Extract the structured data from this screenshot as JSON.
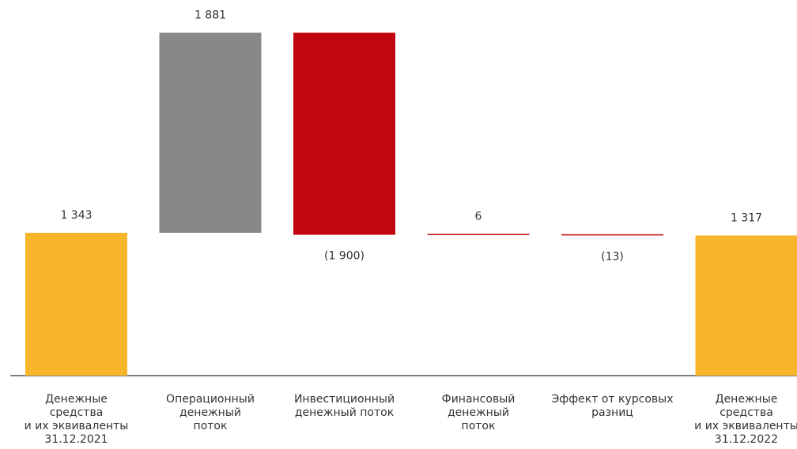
{
  "chart_data": {
    "type": "bar",
    "subtype": "waterfall",
    "categories": [
      [
        "Денежные",
        "средства",
        "и их эквиваленты",
        "31.12.2021"
      ],
      [
        "Операционный",
        "денежный",
        "поток"
      ],
      [
        "Инвестиционный",
        "денежный поток"
      ],
      [
        "Финансовый",
        "денежный",
        "поток"
      ],
      [
        "Эффект от курсовых",
        "разниц"
      ],
      [
        "Денежные",
        "средства",
        "и их эквиваленты",
        "31.12.2022"
      ]
    ],
    "values": [
      1343,
      1881,
      -1900,
      6,
      -13,
      1317
    ],
    "value_labels": [
      "1 343",
      "1 881",
      "(1 900)",
      "6",
      "(13)",
      "1 317"
    ],
    "bar_kinds": [
      "total",
      "delta",
      "delta",
      "delta",
      "delta",
      "total"
    ],
    "ylim": [
      0,
      3224
    ],
    "grid": false,
    "colors": {
      "total": "#f7b52c",
      "operating": "#8a8886",
      "negative": "#c0070f",
      "positive": "#c0070f",
      "baseline": "#333333",
      "text": "#333333"
    }
  }
}
